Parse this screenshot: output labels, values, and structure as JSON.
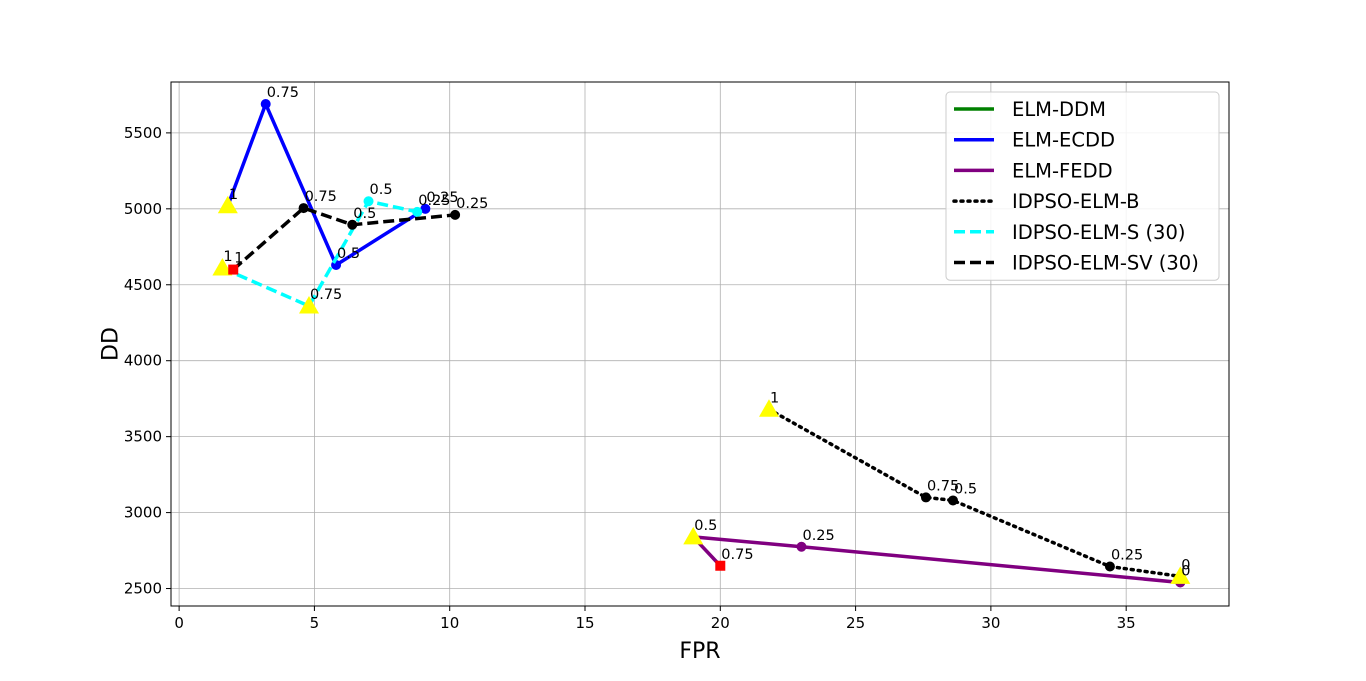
{
  "chart_data": {
    "type": "line",
    "title": "",
    "xlabel": "FPR",
    "ylabel": "DD",
    "xlim": [
      -0.3,
      38.8
    ],
    "ylim": [
      2385,
      5835
    ],
    "xticks": [
      0,
      5,
      10,
      15,
      20,
      25,
      30,
      35
    ],
    "yticks": [
      2500,
      3000,
      3500,
      4000,
      4500,
      5000,
      5500
    ],
    "grid": true,
    "legend_position": "upper-right",
    "series": [
      {
        "name": "ELM-DDM",
        "color": "#008000",
        "linestyle": "solid",
        "points": []
      },
      {
        "name": "ELM-ECDD",
        "color": "#0000ff",
        "linestyle": "solid",
        "points": [
          {
            "x": 1.8,
            "y": 5020,
            "label": "1",
            "marker": "triangle"
          },
          {
            "x": 3.2,
            "y": 5690,
            "label": "0.75",
            "marker": "circle"
          },
          {
            "x": 5.8,
            "y": 4630,
            "label": "0.5",
            "marker": "circle"
          },
          {
            "x": 9.1,
            "y": 5000,
            "label": "0.25",
            "marker": "circle"
          }
        ]
      },
      {
        "name": "ELM-FEDD",
        "color": "#800080",
        "linestyle": "solid",
        "points": [
          {
            "x": 20.0,
            "y": 2650,
            "label": "0.75",
            "marker": "square"
          },
          {
            "x": 19.0,
            "y": 2840,
            "label": "0.5",
            "marker": "triangle"
          },
          {
            "x": 23.0,
            "y": 2775,
            "label": "0.25",
            "marker": "circle"
          },
          {
            "x": 37.0,
            "y": 2540,
            "label": "0",
            "marker": "circle"
          }
        ]
      },
      {
        "name": "IDPSO-ELM-B",
        "color": "#000000",
        "linestyle": "dotted",
        "points": [
          {
            "x": 21.8,
            "y": 3680,
            "label": "1",
            "marker": "triangle"
          },
          {
            "x": 27.6,
            "y": 3100,
            "label": "0.75",
            "marker": "circle"
          },
          {
            "x": 28.6,
            "y": 3080,
            "label": "0.5",
            "marker": "circle"
          },
          {
            "x": 34.4,
            "y": 2645,
            "label": "0.25",
            "marker": "circle"
          },
          {
            "x": 37.0,
            "y": 2580,
            "label": "0",
            "marker": "triangle"
          }
        ]
      },
      {
        "name": "IDPSO-ELM-S (30)",
        "color": "#00ffff",
        "linestyle": "dashed",
        "points": [
          {
            "x": 1.6,
            "y": 4610,
            "label": "1",
            "marker": "triangle"
          },
          {
            "x": 4.8,
            "y": 4360,
            "label": "0.75",
            "marker": "triangle"
          },
          {
            "x": 7.0,
            "y": 5050,
            "label": "0.5",
            "marker": "circle"
          },
          {
            "x": 8.8,
            "y": 4980,
            "label": "0.25",
            "marker": "circle"
          }
        ]
      },
      {
        "name": "IDPSO-ELM-SV (30)",
        "color": "#000000",
        "linestyle": "dashed",
        "points": [
          {
            "x": 2.0,
            "y": 4600,
            "label": "1",
            "marker": "square"
          },
          {
            "x": 4.6,
            "y": 5005,
            "label": "0.75",
            "marker": "circle"
          },
          {
            "x": 6.4,
            "y": 4895,
            "label": "0.5",
            "marker": "circle"
          },
          {
            "x": 10.2,
            "y": 4960,
            "label": "0.25",
            "marker": "circle"
          }
        ]
      }
    ]
  }
}
